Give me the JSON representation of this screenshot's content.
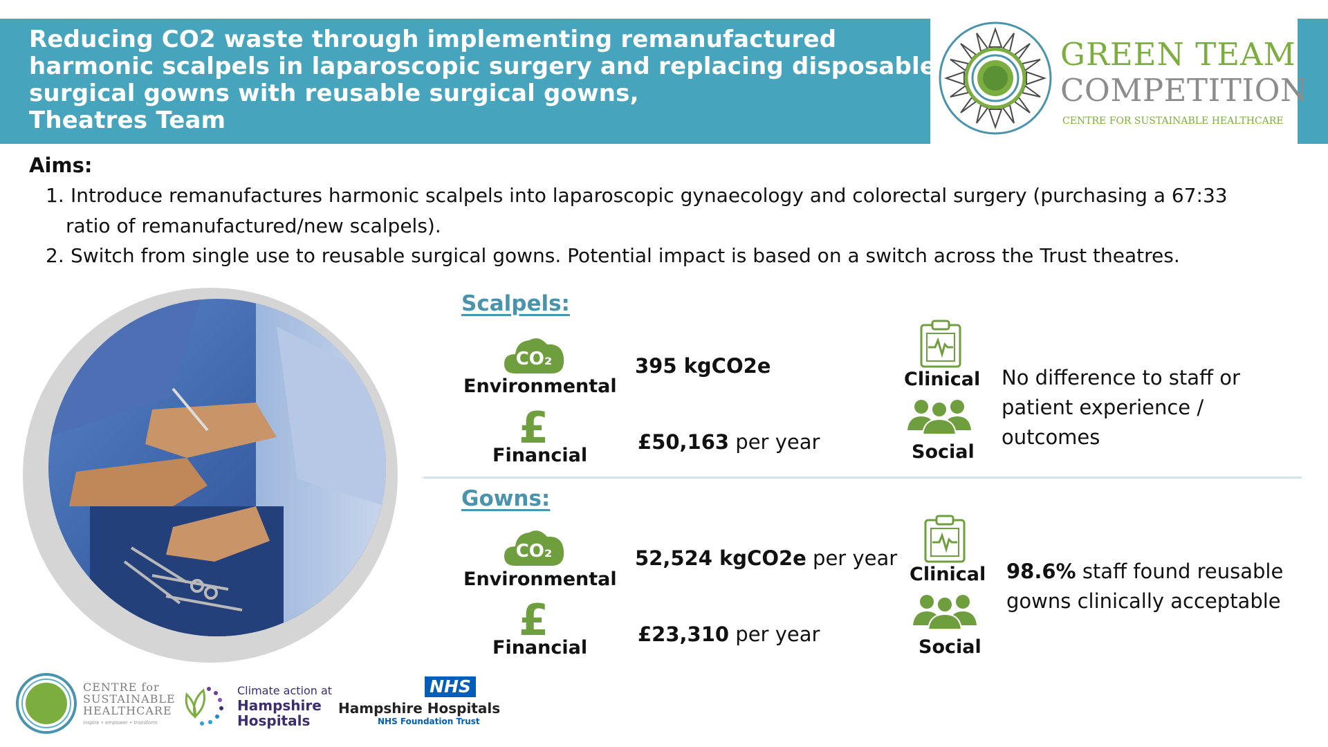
{
  "header": {
    "title_lines": [
      "Reducing CO2 waste through implementing remanufactured",
      "harmonic scalpels in laparoscopic surgery and replacing disposable",
      "surgical gowns with reusable surgical gowns,",
      "Theatres Team"
    ]
  },
  "competition_logo": {
    "line1": "GREEN TEAM",
    "line2": "COMPETITION",
    "sub": "CENTRE FOR SUSTAINABLE HEALTHCARE"
  },
  "aims": {
    "title": "Aims:",
    "items": [
      {
        "num": "1.",
        "line1": "Introduce remanufactures harmonic scalpels into laparoscopic gynaecology and colorectal surgery (purchasing a 67:33",
        "line2": "ratio of remanufactured/new scalpels)."
      },
      {
        "num": "2.",
        "line1": "Switch from single use to reusable surgical gowns. Potential impact is based on a switch across the Trust theatres."
      }
    ]
  },
  "icons": {
    "co2_text": "CO₂",
    "pound_symbol": "£"
  },
  "sections": [
    {
      "title": "Scalpels:",
      "environmental_label": "Environmental",
      "environmental_value": "395 kgCO2e",
      "environmental_suffix": "",
      "financial_label": "Financial",
      "financial_value": "£50,163",
      "financial_suffix": " per year",
      "clinical_label": "Clinical",
      "social_label": "Social",
      "desc_bold": "",
      "desc_line1": "No difference to staff or",
      "desc_line2": "patient experience / outcomes"
    },
    {
      "title": "Gowns:",
      "environmental_label": "Environmental",
      "environmental_value": "52,524 kgCO2e",
      "environmental_suffix": " per year",
      "financial_label": "Financial",
      "financial_value": "£23,310",
      "financial_suffix": " per year",
      "clinical_label": "Clinical",
      "social_label": "Social",
      "desc_bold": "98.6%",
      "desc_line1": " staff found reusable",
      "desc_line2": "gowns clinically acceptable"
    }
  ],
  "footer": {
    "csh_line1": "CENTRE for",
    "csh_line2": "SUSTAINABLE",
    "csh_line3": "HEALTHCARE",
    "csh_tag": "inspire • empower • transform",
    "climate_line1": "Climate action at",
    "climate_line2": "Hampshire",
    "climate_line3": "Hospitals",
    "nhs_badge": "NHS",
    "nhs_name": "Hampshire Hospitals",
    "nhs_sub": "NHS Foundation Trust"
  },
  "colors": {
    "header_bg": "#46a4bd",
    "accent_green": "#7cae3f",
    "section_title": "#4a93ad",
    "nhs_blue": "#005eb8"
  }
}
